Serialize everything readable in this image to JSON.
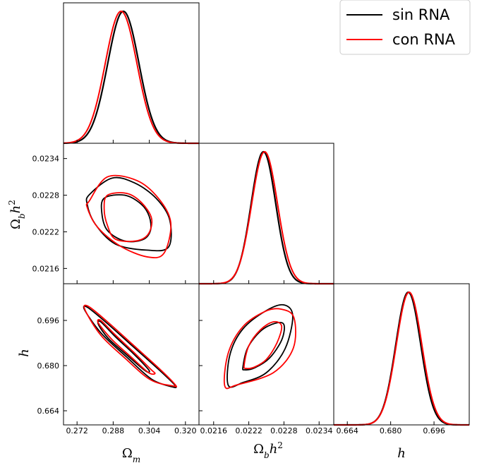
{
  "chart_data": {
    "type": "triangle",
    "parameters": [
      {
        "name": "Ω_m",
        "range": [
          0.266,
          0.326
        ],
        "ticks": [
          0.272,
          0.288,
          0.304,
          0.32
        ],
        "tick_labels": [
          "0.272",
          "0.288",
          "0.304",
          "0.320"
        ]
      },
      {
        "name": "Ω_b h^2",
        "range": [
          0.02135,
          0.02365
        ],
        "ticks": [
          0.0216,
          0.0222,
          0.0228,
          0.0234
        ],
        "tick_labels": [
          "0.0216",
          "0.0222",
          "0.0228",
          "0.0234"
        ]
      },
      {
        "name": "h",
        "range": [
          0.659,
          0.709
        ],
        "ticks": [
          0.664,
          0.68,
          0.696
        ],
        "tick_labels": [
          "0.664",
          "0.680",
          "0.696"
        ]
      }
    ],
    "axis_labels": {
      "x": [
        {
          "base": "Ω",
          "sub": "m",
          "sup": ""
        },
        {
          "base": "Ω",
          "sub": "b",
          "sup": "2",
          "tail": "h"
        },
        {
          "base": "h",
          "sub": "",
          "sup": ""
        }
      ],
      "y": [
        {
          "base": "Ω",
          "sub": "b",
          "sup": "2",
          "tail": "h"
        },
        {
          "base": "h",
          "sub": "",
          "sup": ""
        }
      ]
    },
    "legend": {
      "position": "top-right",
      "entries": [
        "sin RNA",
        "con RNA"
      ]
    },
    "series": [
      {
        "name": "sin RNA",
        "color": "#000000",
        "means": [
          0.2925,
          0.02245,
          0.6865
        ],
        "sigmas": [
          0.0069,
          0.00021,
          0.0046
        ],
        "correlations": {
          "ob_om": -0.42,
          "h_om": -0.955,
          "h_ob": 0.55
        },
        "contours": [
          {
            "pair": [
              0,
              1
            ],
            "level": "68%",
            "points": [
              [
                0.284,
                0.02275
              ],
              [
                0.293,
                0.0228
              ],
              [
                0.3005,
                0.02265
              ],
              [
                0.304,
                0.02245
              ],
              [
                0.3045,
                0.02222
              ],
              [
                0.301,
                0.02207
              ],
              [
                0.293,
                0.02205
              ],
              [
                0.2855,
                0.02222
              ],
              [
                0.283,
                0.0225
              ]
            ]
          },
          {
            "pair": [
              0,
              1
            ],
            "level": "95%",
            "points": [
              [
                0.2775,
                0.02281
              ],
              [
                0.2875,
                0.02308
              ],
              [
                0.2975,
                0.023
              ],
              [
                0.307,
                0.02275
              ],
              [
                0.313,
                0.0224
              ],
              [
                0.3125,
                0.02195
              ],
              [
                0.303,
                0.0219
              ],
              [
                0.289,
                0.022
              ],
              [
                0.28,
                0.02233
              ],
              [
                0.2765,
                0.02265
              ]
            ]
          },
          {
            "pair": [
              0,
              2
            ],
            "level": "68%",
            "points": [
              [
                0.2825,
                0.6955
              ],
              [
                0.289,
                0.6902
              ],
              [
                0.297,
                0.6842
              ],
              [
                0.303,
                0.6792
              ],
              [
                0.304,
                0.6778
              ],
              [
                0.302,
                0.6783
              ],
              [
                0.294,
                0.6838
              ],
              [
                0.286,
                0.6895
              ],
              [
                0.2815,
                0.6945
              ]
            ]
          },
          {
            "pair": [
              0,
              2
            ],
            "level": "95%",
            "points": [
              [
                0.2765,
                0.7007
              ],
              [
                0.285,
                0.6952
              ],
              [
                0.297,
                0.6866
              ],
              [
                0.309,
                0.678
              ],
              [
                0.3155,
                0.6729
              ],
              [
                0.314,
                0.6725
              ],
              [
                0.305,
                0.6752
              ],
              [
                0.294,
                0.683
              ],
              [
                0.283,
                0.6912
              ],
              [
                0.2755,
                0.6995
              ]
            ]
          },
          {
            "pair": [
              1,
              2
            ],
            "level": "68%",
            "points": [
              [
                0.0221,
                0.6795
              ],
              [
                0.02218,
                0.6862
              ],
              [
                0.0224,
                0.6922
              ],
              [
                0.02265,
                0.695
              ],
              [
                0.0228,
                0.6945
              ],
              [
                0.02276,
                0.689
              ],
              [
                0.02255,
                0.6826
              ],
              [
                0.0223,
                0.6792
              ],
              [
                0.02213,
                0.6785
              ]
            ]
          },
          {
            "pair": [
              1,
              2
            ],
            "level": "95%",
            "points": [
              [
                0.02185,
                0.673
              ],
              [
                0.02188,
                0.684
              ],
              [
                0.0221,
                0.693
              ],
              [
                0.0225,
                0.6995
              ],
              [
                0.0228,
                0.7015
              ],
              [
                0.02295,
                0.6975
              ],
              [
                0.02282,
                0.686
              ],
              [
                0.0225,
                0.6775
              ],
              [
                0.0221,
                0.674
              ]
            ]
          }
        ]
      },
      {
        "name": "con RNA",
        "color": "#ff0000",
        "means": [
          0.2915,
          0.02247,
          0.6868
        ],
        "sigmas": [
          0.007,
          0.00022,
          0.0047
        ],
        "correlations": {
          "ob_om": -0.42,
          "h_om": -0.955,
          "h_ob": 0.55
        },
        "contours": [
          {
            "pair": [
              0,
              1
            ],
            "level": "68%",
            "points": [
              [
                0.2855,
                0.0228
              ],
              [
                0.294,
                0.02283
              ],
              [
                0.3005,
                0.02268
              ],
              [
                0.305,
                0.02242
              ],
              [
                0.3035,
                0.02216
              ],
              [
                0.298,
                0.02205
              ],
              [
                0.289,
                0.02208
              ],
              [
                0.2855,
                0.0223
              ],
              [
                0.284,
                0.02258
              ]
            ]
          },
          {
            "pair": [
              0,
              1
            ],
            "level": "95%",
            "points": [
              [
                0.2775,
                0.02271
              ],
              [
                0.2855,
                0.0231
              ],
              [
                0.2985,
                0.02304
              ],
              [
                0.308,
                0.02275
              ],
              [
                0.3135,
                0.02235
              ],
              [
                0.3105,
                0.02185
              ],
              [
                0.303,
                0.02179
              ],
              [
                0.291,
                0.02197
              ],
              [
                0.281,
                0.02228
              ],
              [
                0.2765,
                0.0226
              ]
            ]
          },
          {
            "pair": [
              0,
              2
            ],
            "level": "68%",
            "points": [
              [
                0.2825,
                0.696
              ],
              [
                0.2885,
                0.6912
              ],
              [
                0.297,
                0.6848
              ],
              [
                0.3045,
                0.6788
              ],
              [
                0.3065,
                0.6772
              ],
              [
                0.3035,
                0.6776
              ],
              [
                0.296,
                0.683
              ],
              [
                0.2875,
                0.6892
              ],
              [
                0.2815,
                0.695
              ]
            ]
          },
          {
            "pair": [
              0,
              2
            ],
            "level": "95%",
            "points": [
              [
                0.277,
                0.701
              ],
              [
                0.2855,
                0.6955
              ],
              [
                0.297,
                0.6872
              ],
              [
                0.309,
                0.6785
              ],
              [
                0.3155,
                0.6732
              ],
              [
                0.3145,
                0.6728
              ],
              [
                0.3045,
                0.675
              ],
              [
                0.293,
                0.6828
              ],
              [
                0.2825,
                0.6908
              ],
              [
                0.2755,
                0.6998
              ]
            ]
          },
          {
            "pair": [
              1,
              2
            ],
            "level": "68%",
            "points": [
              [
                0.02212,
                0.68
              ],
              [
                0.0222,
                0.687
              ],
              [
                0.0224,
                0.6927
              ],
              [
                0.02262,
                0.6955
              ],
              [
                0.02276,
                0.694
              ],
              [
                0.02268,
                0.688
              ],
              [
                0.0225,
                0.6822
              ],
              [
                0.0223,
                0.6795
              ],
              [
                0.02216,
                0.679
              ]
            ]
          },
          {
            "pair": [
              1,
              2
            ],
            "level": "95%",
            "points": [
              [
                0.02179,
                0.6728
              ],
              [
                0.02185,
                0.6845
              ],
              [
                0.0221,
                0.6938
              ],
              [
                0.02248,
                0.6992
              ],
              [
                0.02275,
                0.7
              ],
              [
                0.02297,
                0.697
              ],
              [
                0.02296,
                0.6862
              ],
              [
                0.02262,
                0.6775
              ],
              [
                0.022,
                0.6732
              ]
            ]
          }
        ]
      }
    ]
  }
}
